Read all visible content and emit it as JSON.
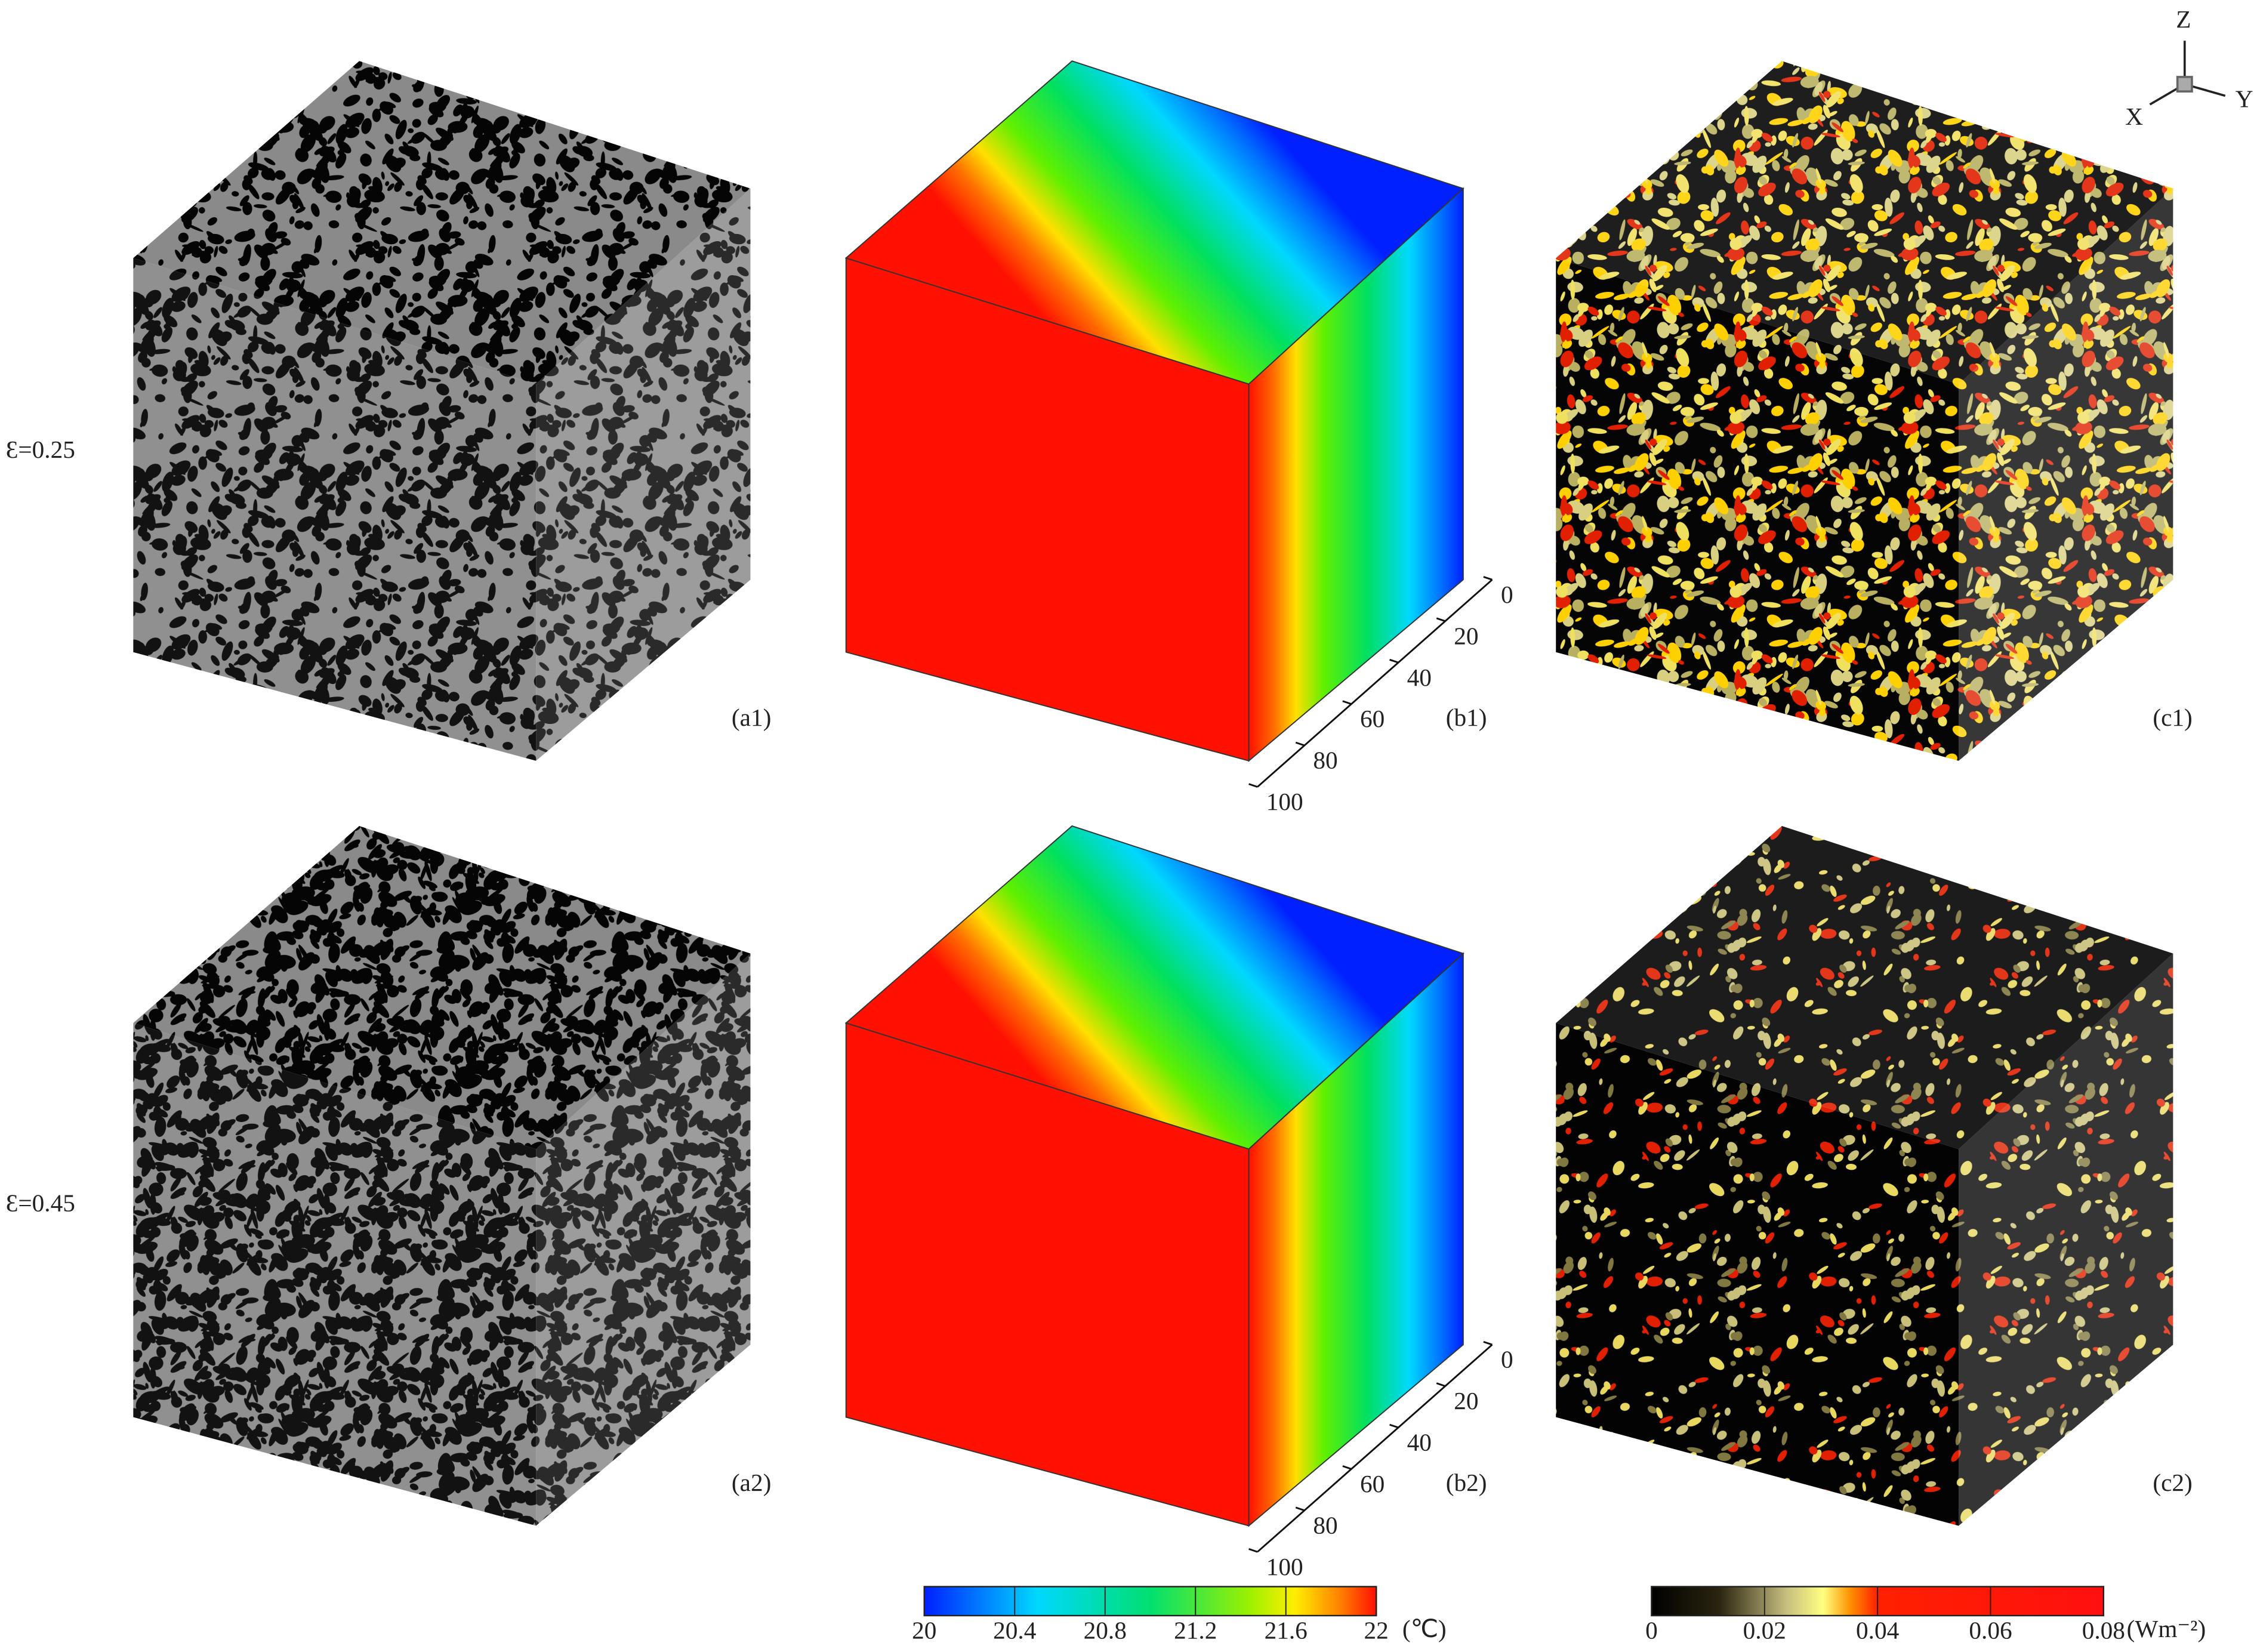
{
  "row_labels": [
    "Ɛ=0.25",
    "Ɛ=0.45"
  ],
  "panels": [
    [
      "(a1)",
      "(b1)",
      "(c1)"
    ],
    [
      "(a2)",
      "(b2)",
      "(c2)"
    ]
  ],
  "depth_ticks": [
    0,
    20,
    40,
    60,
    80,
    100
  ],
  "axes": {
    "z": "Z",
    "y": "Y",
    "x": "X"
  },
  "temperature_colorbar": {
    "ticks": [
      20,
      20.4,
      20.8,
      21.2,
      21.6,
      22
    ],
    "unit": "(℃)"
  },
  "flux_colorbar": {
    "ticks": [
      0,
      0.02,
      0.04,
      0.06,
      0.08
    ],
    "unit": "(Wm⁻²)"
  }
}
